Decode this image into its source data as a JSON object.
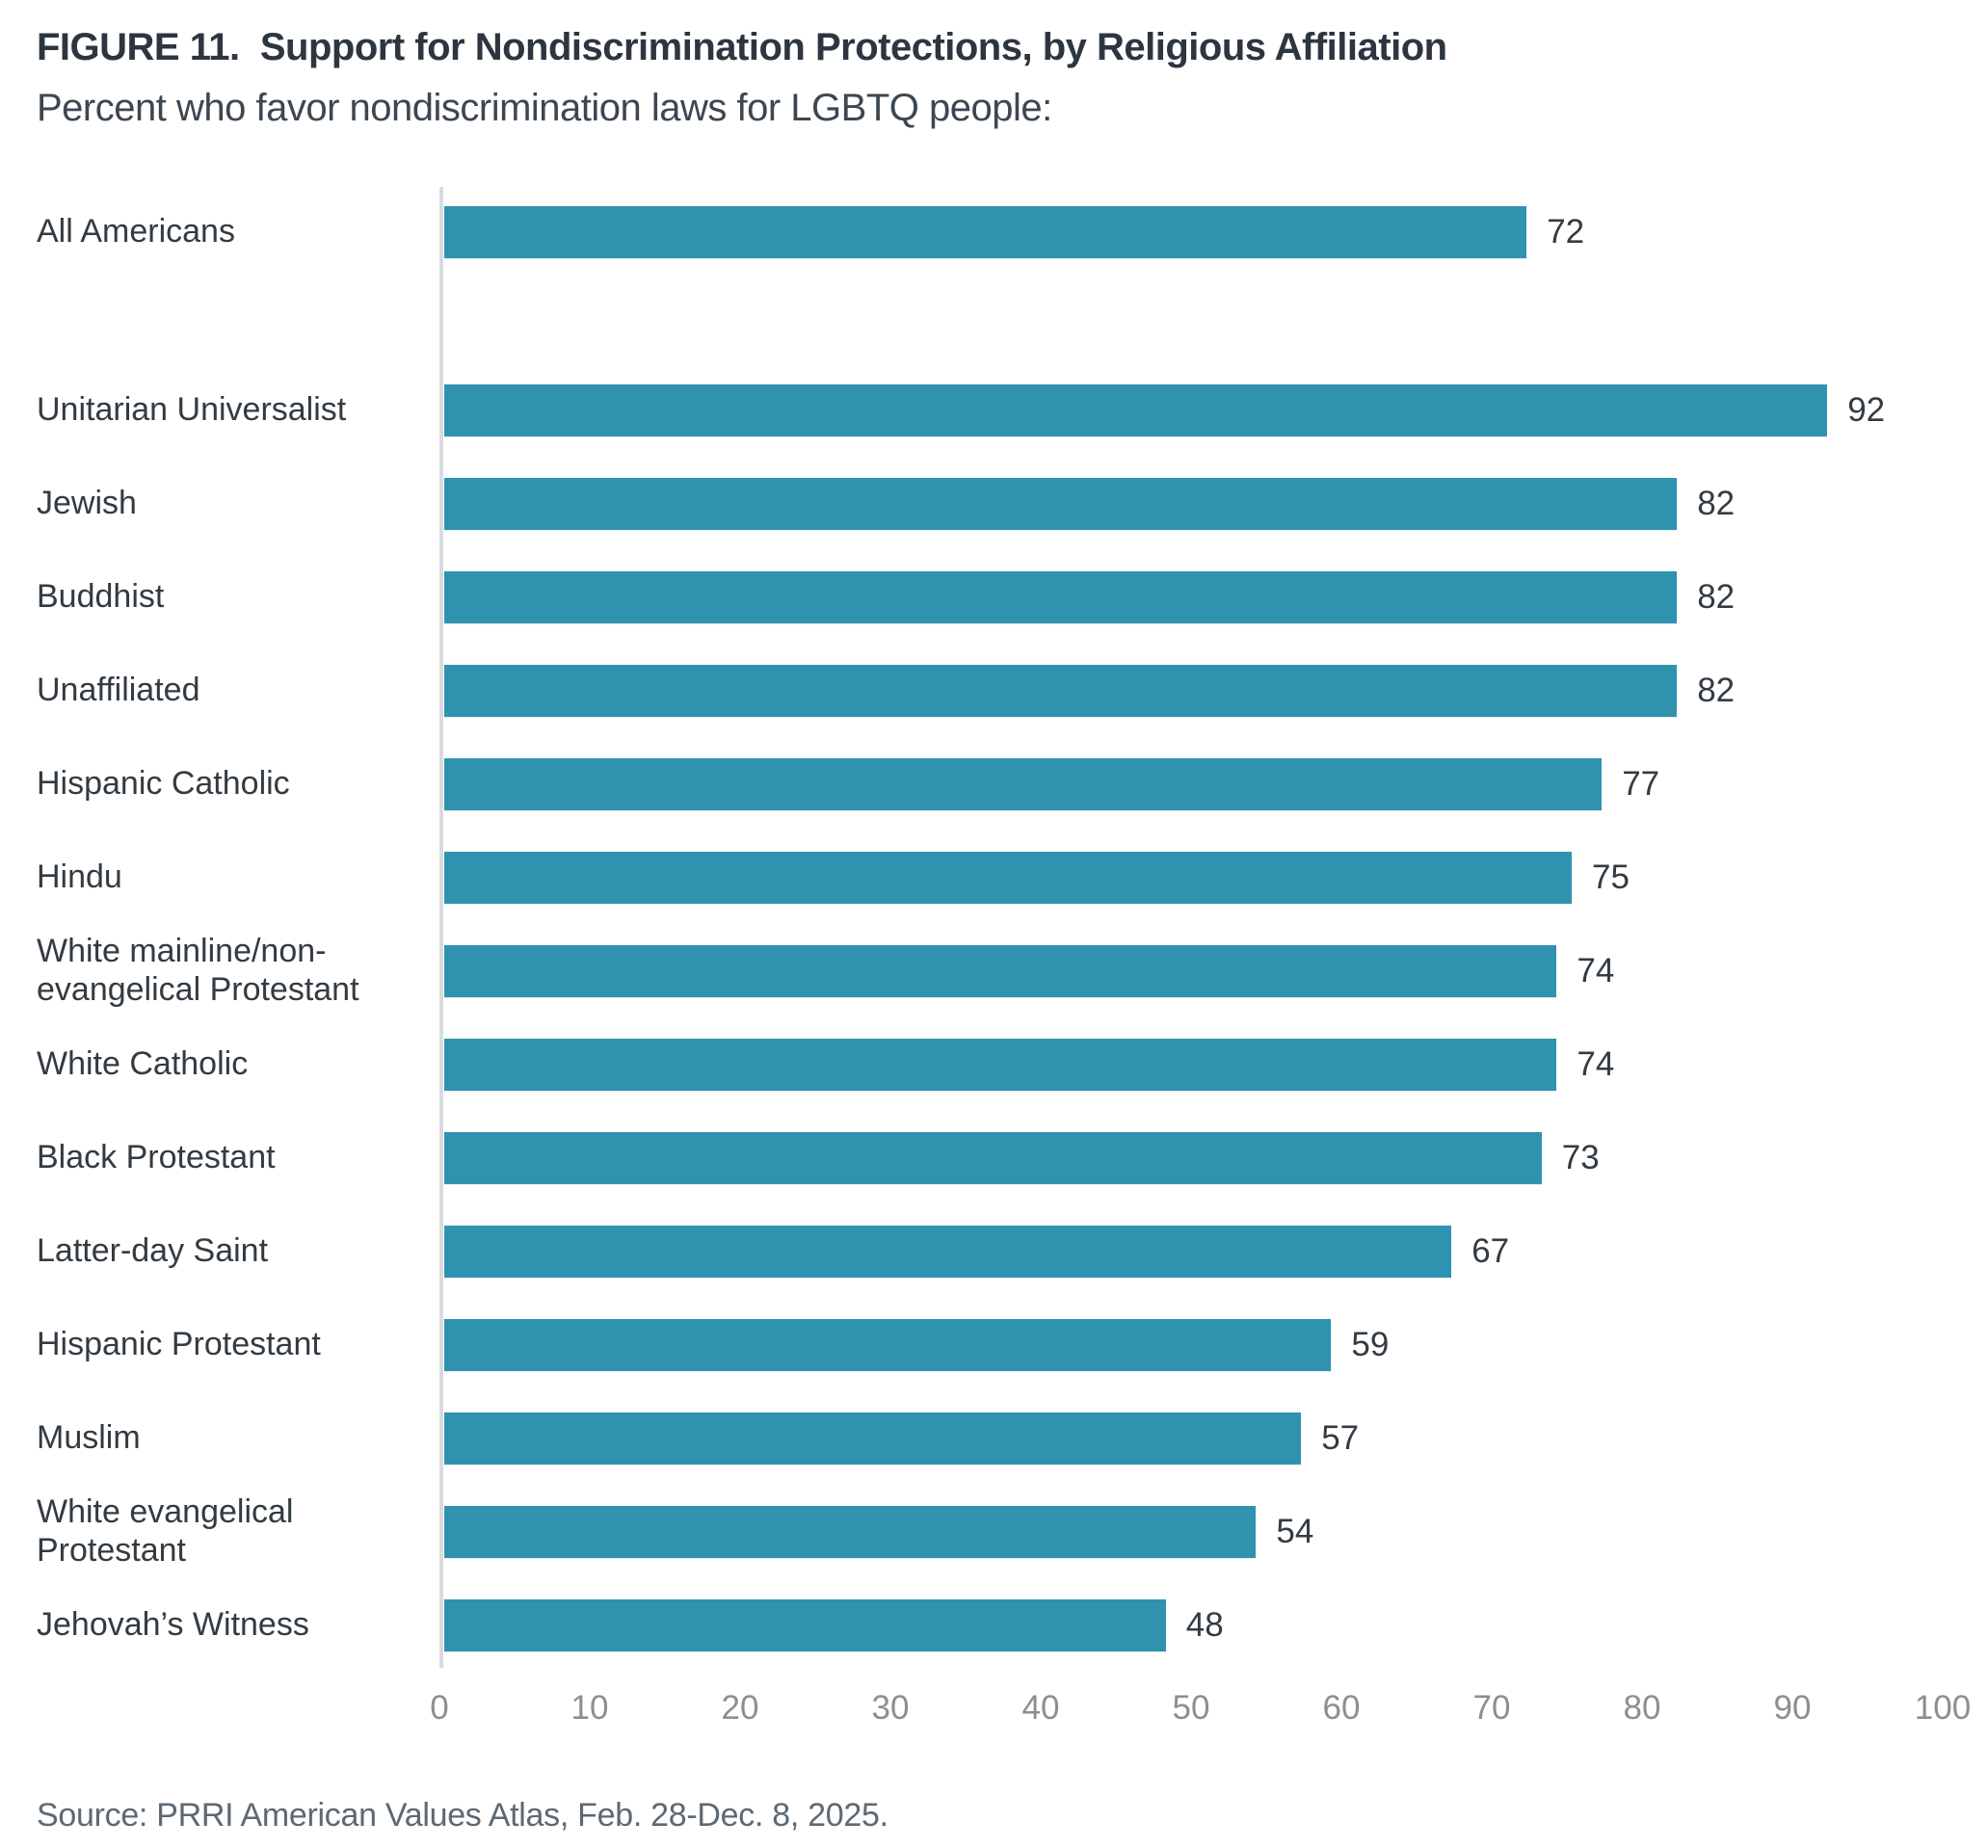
{
  "figure": {
    "title": "FIGURE 11.  Support for Nondiscrimination Protections, by Religious Affiliation",
    "subtitle": "Percent who favor nondiscrimination laws for LGBTQ people:",
    "source": "Source: PRRI American Values Atlas, Feb. 28-Dec. 8, 2025."
  },
  "chart_data": {
    "type": "bar",
    "orientation": "horizontal",
    "title": "FIGURE 11. Support for Nondiscrimination Protections, by Religious Affiliation",
    "subtitle": "Percent who favor nondiscrimination laws for LGBTQ people:",
    "categories": [
      "All Americans",
      "Unitarian Universalist",
      "Jewish",
      "Buddhist",
      "Unaffiliated",
      "Hispanic Catholic",
      "Hindu",
      "White mainline/non-evangelical Protestant",
      "White Catholic",
      "Black Protestant",
      "Latter-day Saint",
      "Hispanic Protestant",
      "Muslim",
      "White evangelical Protestant",
      "Jehovah’s Witness"
    ],
    "values": [
      72,
      92,
      82,
      82,
      82,
      77,
      75,
      74,
      74,
      73,
      67,
      59,
      57,
      54,
      48
    ],
    "gap_after_index": 0,
    "xlabel": "",
    "ylabel": "",
    "xlim": [
      0,
      100
    ],
    "x_ticks": [
      0,
      10,
      20,
      30,
      40,
      50,
      60,
      70,
      80,
      90,
      100
    ],
    "grid": false,
    "legend": "none",
    "value_labels_position": "right-of-bar",
    "bar_color": "#2F93B0",
    "axis_line_color": "#d9dbdd",
    "tick_label_color": "#8b8f92"
  }
}
